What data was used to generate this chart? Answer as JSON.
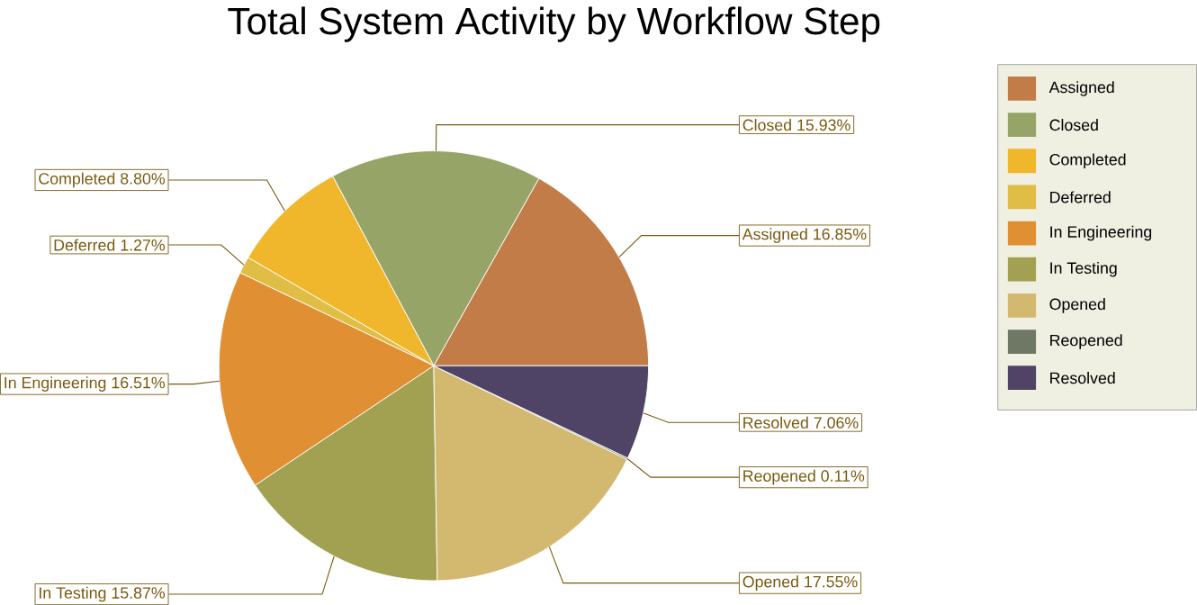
{
  "chart_data": {
    "type": "pie",
    "title": "Total System Activity by Workflow Step",
    "categories": [
      "Assigned",
      "Closed",
      "Completed",
      "Deferred",
      "In Engineering",
      "In Testing",
      "Opened",
      "Reopened",
      "Resolved"
    ],
    "values": [
      16.85,
      15.93,
      8.8,
      1.27,
      16.51,
      15.87,
      17.55,
      0.11,
      7.06
    ],
    "value_labels": [
      "16.85%",
      "15.93%",
      "8.80%",
      "1.27%",
      "16.51%",
      "15.87%",
      "17.55%",
      "0.11%",
      "7.06%"
    ],
    "colors": [
      "#c27c48",
      "#97a468",
      "#f0b72c",
      "#e0bd45",
      "#e08f32",
      "#a2a152",
      "#d3b96f",
      "#6e7864",
      "#504466"
    ],
    "legend": "right"
  }
}
